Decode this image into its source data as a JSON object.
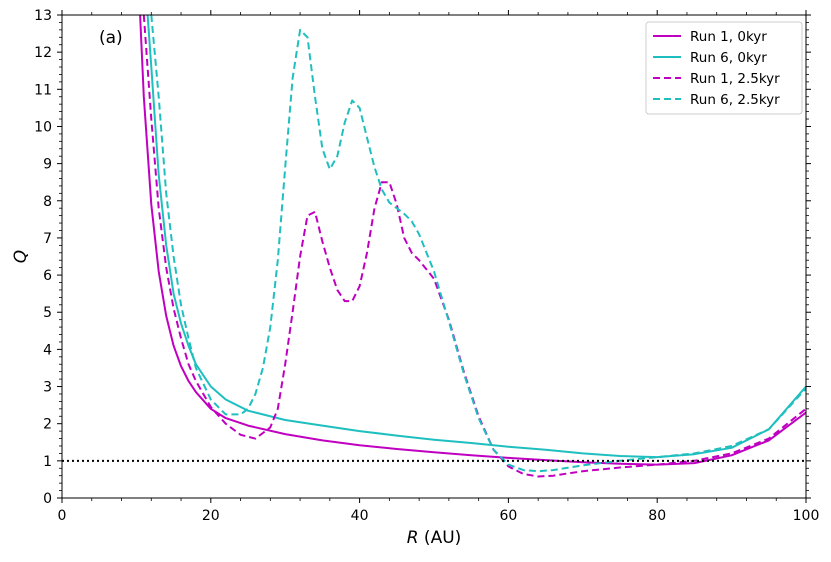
{
  "chart_data": {
    "type": "line",
    "panel_label": "(a)",
    "xlabel_italic": "R",
    "xlabel_rest": " (AU)",
    "ylabel": "Q",
    "xlim": [
      0,
      100
    ],
    "ylim": [
      0,
      13
    ],
    "xticks": [
      0,
      20,
      40,
      60,
      80,
      100
    ],
    "yticks": [
      0,
      1,
      2,
      3,
      4,
      5,
      6,
      7,
      8,
      9,
      10,
      11,
      12,
      13
    ],
    "grid": false,
    "legend_position": "top-right",
    "reference_line": {
      "y": 1,
      "style": "dotted",
      "color": "#000000"
    },
    "series": [
      {
        "name": "Run 1, 0kyr",
        "color": "#c000c0",
        "dash": "solid",
        "x": [
          10.5,
          11,
          12,
          13,
          14,
          15,
          16,
          17,
          18,
          20,
          22,
          25,
          30,
          35,
          40,
          45,
          50,
          55,
          60,
          65,
          70,
          75,
          80,
          85,
          90,
          95,
          100
        ],
        "y": [
          13.0,
          10.8,
          7.9,
          6.1,
          4.9,
          4.1,
          3.55,
          3.15,
          2.85,
          2.4,
          2.15,
          1.95,
          1.72,
          1.55,
          1.42,
          1.32,
          1.23,
          1.15,
          1.08,
          1.02,
          0.96,
          0.92,
          0.9,
          0.94,
          1.15,
          1.55,
          2.3
        ]
      },
      {
        "name": "Run 6, 0kyr",
        "color": "#1fbfbf",
        "dash": "solid",
        "x": [
          11.5,
          12,
          13,
          14,
          15,
          16,
          17,
          18,
          20,
          22,
          25,
          30,
          35,
          40,
          45,
          50,
          55,
          60,
          65,
          70,
          75,
          80,
          85,
          90,
          95,
          100
        ],
        "y": [
          13.0,
          11.6,
          8.7,
          6.8,
          5.5,
          4.7,
          4.1,
          3.6,
          3.0,
          2.65,
          2.35,
          2.1,
          1.95,
          1.8,
          1.68,
          1.57,
          1.48,
          1.38,
          1.3,
          1.2,
          1.13,
          1.1,
          1.18,
          1.35,
          1.85,
          3.0
        ]
      },
      {
        "name": "Run 1, 2.5kyr",
        "color": "#c000c0",
        "dash": "dashed",
        "x": [
          11,
          12,
          13,
          14,
          15,
          16,
          17,
          18,
          20,
          22,
          24,
          26,
          28,
          29,
          30,
          31,
          32,
          33,
          34,
          35,
          36,
          37,
          38,
          39,
          40,
          41,
          42,
          43,
          44,
          45,
          46,
          47,
          48,
          50,
          52,
          54,
          56,
          58,
          60,
          62,
          64,
          66,
          70,
          75,
          80,
          85,
          90,
          95,
          100
        ],
        "y": [
          13.0,
          10.2,
          7.8,
          6.2,
          5.1,
          4.3,
          3.6,
          3.15,
          2.45,
          2.0,
          1.7,
          1.6,
          1.9,
          2.4,
          3.6,
          5.0,
          6.5,
          7.6,
          7.7,
          6.9,
          6.2,
          5.6,
          5.3,
          5.3,
          5.7,
          6.6,
          7.8,
          8.5,
          8.5,
          7.9,
          7.0,
          6.6,
          6.4,
          5.9,
          4.8,
          3.4,
          2.2,
          1.3,
          0.85,
          0.65,
          0.58,
          0.6,
          0.72,
          0.82,
          0.9,
          1.0,
          1.2,
          1.6,
          2.4
        ]
      },
      {
        "name": "Run 6, 2.5kyr",
        "color": "#1fbfbf",
        "dash": "dashed",
        "x": [
          12,
          13,
          14,
          15,
          16,
          17,
          18,
          20,
          22,
          24,
          25,
          26,
          27,
          28,
          29,
          30,
          31,
          32,
          33,
          34,
          35,
          36,
          37,
          38,
          39,
          40,
          41,
          42,
          43,
          44,
          45,
          46,
          47,
          48,
          50,
          52,
          54,
          56,
          58,
          60,
          62,
          64,
          66,
          70,
          75,
          80,
          85,
          90,
          95,
          100
        ],
        "y": [
          13.0,
          10.8,
          8.2,
          6.5,
          5.2,
          4.3,
          3.5,
          2.65,
          2.25,
          2.25,
          2.4,
          2.8,
          3.5,
          4.6,
          6.4,
          8.9,
          11.3,
          12.6,
          12.4,
          10.8,
          9.4,
          8.85,
          9.2,
          10.1,
          10.7,
          10.5,
          9.7,
          8.9,
          8.3,
          7.95,
          7.8,
          7.65,
          7.45,
          7.1,
          6.1,
          4.75,
          3.35,
          2.15,
          1.3,
          0.9,
          0.75,
          0.72,
          0.75,
          0.88,
          1.0,
          1.1,
          1.2,
          1.4,
          1.85,
          2.95
        ]
      }
    ]
  }
}
